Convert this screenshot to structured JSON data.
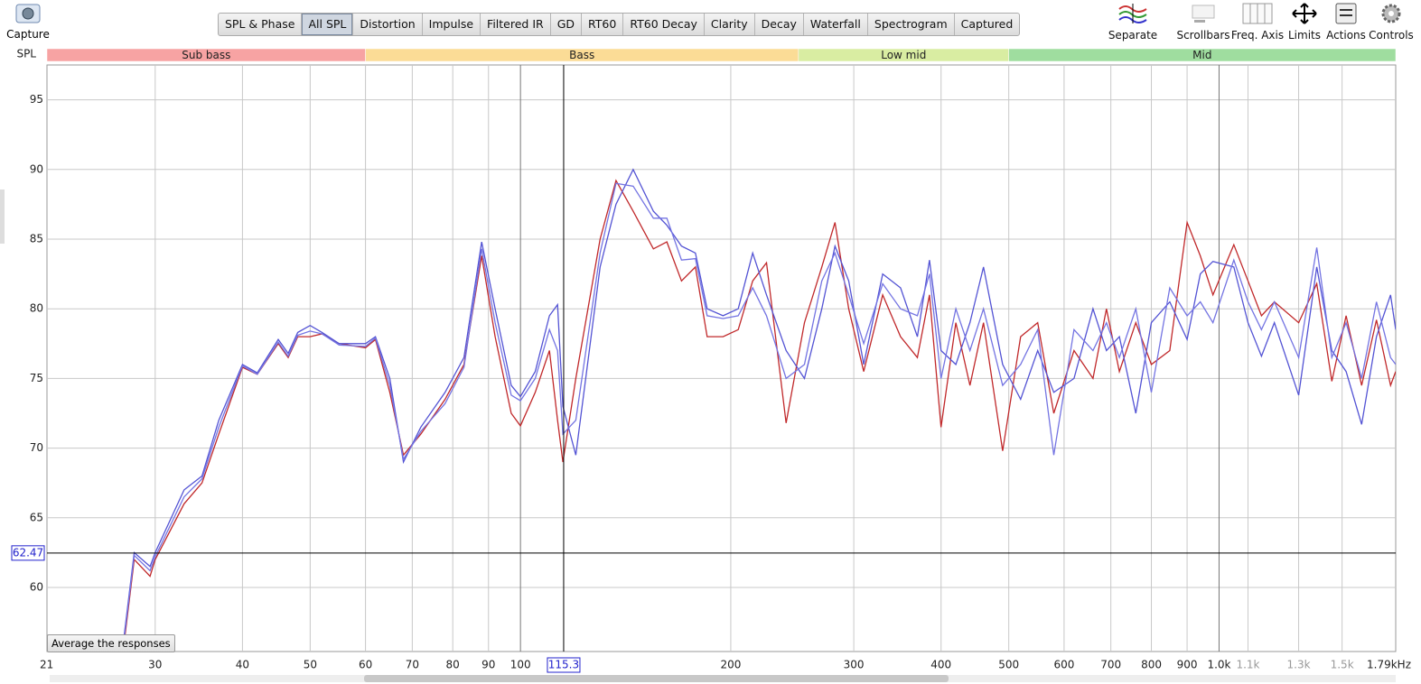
{
  "capture": "Capture",
  "tabs": [
    "SPL & Phase",
    "All SPL",
    "Distortion",
    "Impulse",
    "Filtered IR",
    "GD",
    "RT60",
    "RT60 Decay",
    "Clarity",
    "Decay",
    "Waterfall",
    "Spectrogram",
    "Captured"
  ],
  "active_tab": 1,
  "tools": [
    "Separate",
    "Scrollbars",
    "Freq. Axis",
    "Limits",
    "Actions",
    "Controls"
  ],
  "average_button": "Average the responses",
  "chart_data": {
    "type": "line",
    "ylabel": "SPL",
    "xscale": "log",
    "grid": true,
    "bands": [
      {
        "name": "Sub bass",
        "from": 21,
        "to": 60,
        "color": "#f7a3a3"
      },
      {
        "name": "Bass",
        "from": 60,
        "to": 250,
        "color": "#fbdc96"
      },
      {
        "name": "Low mid",
        "from": 250,
        "to": 500,
        "color": "#d9eda2"
      },
      {
        "name": "Mid",
        "from": 500,
        "to": 2000,
        "color": "#9fdd9f"
      }
    ],
    "xlim": [
      21,
      1790
    ],
    "ylim": [
      55.4,
      97.5
    ],
    "xticks": [
      21,
      30,
      40,
      50,
      60,
      70,
      80,
      90,
      100,
      200,
      300,
      400,
      500,
      600,
      700,
      800,
      900,
      {
        "value": 1000,
        "label": "1.0k"
      },
      {
        "value": 1100,
        "label": "1.1k"
      },
      {
        "value": 1300,
        "label": "1.3k"
      },
      {
        "value": 1500,
        "label": "1.5k"
      },
      {
        "value": 1790,
        "label": "1.79kHz"
      }
    ],
    "yticks": [
      60,
      65,
      70,
      75,
      80,
      85,
      90,
      95
    ],
    "cursor": {
      "x": 115.3,
      "y": 62.47
    },
    "x": [
      27,
      28,
      29.5,
      30,
      33,
      35,
      37,
      40,
      42,
      45,
      46.5,
      48,
      50,
      52,
      55,
      60,
      62,
      65,
      68,
      72,
      78,
      83,
      88,
      92,
      97,
      100,
      105,
      110,
      113,
      115,
      120,
      130,
      137,
      145,
      155,
      162,
      170,
      178,
      185,
      195,
      205,
      215,
      225,
      240,
      255,
      270,
      282,
      295,
      310,
      330,
      350,
      370,
      385,
      400,
      420,
      440,
      460,
      490,
      520,
      550,
      580,
      620,
      660,
      690,
      720,
      760,
      800,
      850,
      900,
      940,
      980,
      1050,
      1100,
      1150,
      1200,
      1300,
      1380,
      1450,
      1520,
      1600,
      1680,
      1760,
      1790
    ],
    "series": [
      {
        "color": "#c0282a",
        "values": [
          55.5,
          62,
          60.8,
          62,
          66,
          67.5,
          71,
          75.8,
          75.3,
          77.5,
          76.5,
          78,
          78,
          78.2,
          77.5,
          77.2,
          77.8,
          74,
          69.5,
          71,
          73.5,
          76,
          83.8,
          78,
          72.5,
          71.6,
          74,
          77,
          72,
          69,
          75,
          85,
          89.2,
          87,
          84.3,
          84.8,
          82,
          83,
          78,
          78,
          78.5,
          82,
          83.3,
          71.8,
          79,
          83,
          86.2,
          80,
          75.5,
          81,
          78,
          76.5,
          81,
          71.5,
          79,
          74.5,
          79,
          69.8,
          78,
          79,
          72.5,
          77,
          75,
          80,
          75.5,
          79,
          76,
          77,
          86.2,
          83.8,
          81,
          84.6,
          82,
          79.5,
          80.5,
          79,
          81.8,
          74.8,
          79.5,
          74.5,
          79.2,
          74.5,
          75.5
        ]
      },
      {
        "color": "#5353d4",
        "values": [
          56,
          62.5,
          61.5,
          62.5,
          67,
          68,
          72,
          76,
          75.4,
          77.8,
          76.8,
          78.3,
          78.8,
          78.3,
          77.5,
          77.5,
          78,
          75,
          69,
          71.5,
          74,
          76.5,
          84.8,
          80,
          74.5,
          73.7,
          75.5,
          79.5,
          80.3,
          73,
          69.5,
          83,
          87.5,
          90,
          87,
          86,
          84.5,
          84,
          80,
          79.5,
          80,
          84,
          81,
          77,
          75,
          80,
          84.5,
          82,
          76,
          82.5,
          81.5,
          78,
          83.5,
          77,
          76,
          79,
          83,
          76,
          73.5,
          77,
          74,
          75,
          80,
          77,
          78,
          72.5,
          79,
          80.5,
          77.8,
          82.5,
          83.4,
          83,
          79,
          76.6,
          79,
          73.8,
          83,
          77,
          75.5,
          71.7,
          78,
          81,
          78.5
        ]
      },
      {
        "color": "#7474e2",
        "values": [
          55.8,
          62.3,
          61.2,
          62.2,
          66.5,
          67.8,
          71.5,
          75.9,
          75.3,
          77.6,
          76.6,
          78.1,
          78.4,
          78.2,
          77.4,
          77.3,
          77.9,
          74.5,
          69.2,
          71.2,
          73.2,
          75.8,
          84.3,
          79,
          73.8,
          73.4,
          75,
          78.5,
          77,
          71,
          72,
          84,
          89,
          88.8,
          86.5,
          86.5,
          83.5,
          83.6,
          79.5,
          79.3,
          79.5,
          81.5,
          79.5,
          75,
          76,
          82,
          84,
          81,
          77.5,
          81.8,
          80,
          79.5,
          82.5,
          75,
          80,
          77,
          80,
          74.5,
          76,
          78.5,
          69.5,
          78.5,
          77,
          79,
          76.5,
          80,
          74,
          81.5,
          79.5,
          80.5,
          79,
          83.5,
          80.5,
          78.5,
          80.5,
          76.5,
          84.4,
          76.5,
          79,
          75,
          80.5,
          76.5,
          76
        ]
      }
    ]
  }
}
